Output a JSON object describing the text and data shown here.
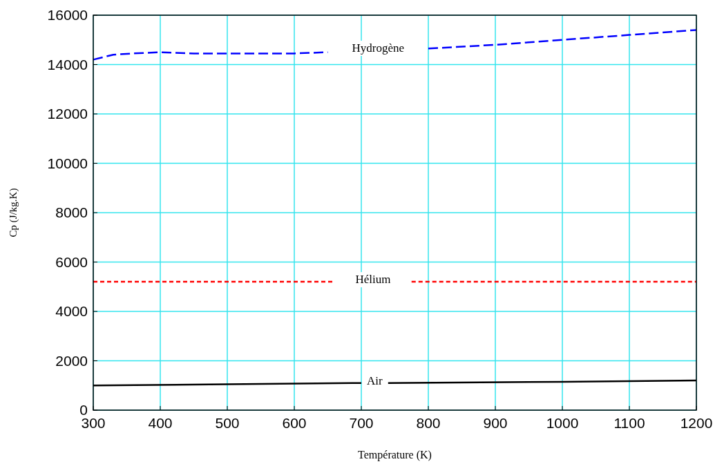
{
  "chart_data": {
    "type": "line",
    "xlabel": "Température (K)",
    "ylabel": "Cp (J/kg.K)",
    "xlim": [
      300,
      1200
    ],
    "xticks": [
      300,
      400,
      500,
      600,
      700,
      800,
      900,
      1000,
      1100,
      1200
    ],
    "ylim": [
      0,
      16000
    ],
    "yticks": [
      0,
      2000,
      4000,
      6000,
      8000,
      10000,
      12000,
      14000,
      16000
    ],
    "grid": true,
    "series": [
      {
        "name": "Hydrogène",
        "color": "#0000ff",
        "line_style": "dashed",
        "x": [
          300,
          330,
          360,
          400,
          450,
          500,
          550,
          600,
          650,
          700,
          800,
          900,
          1000,
          1100,
          1200
        ],
        "values": [
          14200,
          14400,
          14450,
          14500,
          14450,
          14450,
          14450,
          14450,
          14500,
          null,
          14650,
          14800,
          15000,
          15200,
          15400
        ]
      },
      {
        "name": "Hélium",
        "color": "#ff0000",
        "line_style": "dotted",
        "x": [
          300,
          660,
          715,
          775,
          1200
        ],
        "values": [
          5200,
          5200,
          null,
          5200,
          5200
        ]
      },
      {
        "name": "Air",
        "color": "#000000",
        "line_style": "solid",
        "x": [
          300,
          500,
          700,
          720,
          740,
          1000,
          1200
        ],
        "values": [
          1000,
          1050,
          1100,
          null,
          1100,
          1150,
          1200
        ]
      }
    ]
  }
}
